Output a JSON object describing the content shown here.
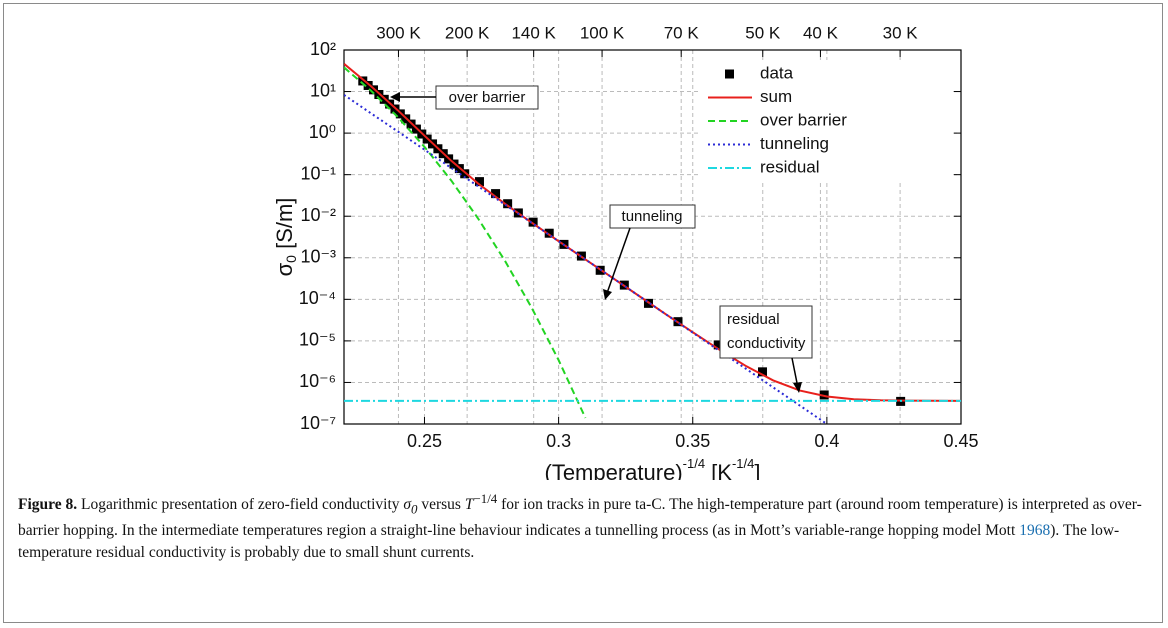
{
  "chart_data": {
    "type": "line",
    "xlim": [
      0.22,
      0.45
    ],
    "ylim": [
      1e-07,
      100
    ],
    "log_y": true,
    "grid": true,
    "legend": "upper right",
    "xticks": [
      0.25,
      0.3,
      0.35,
      0.4,
      0.45
    ],
    "yticks": [
      {
        "value": 100,
        "label": "10²"
      },
      {
        "value": 10,
        "label": "10¹"
      },
      {
        "value": 1,
        "label": "10⁰"
      },
      {
        "value": 0.1,
        "label": "10⁻¹"
      },
      {
        "value": 0.01,
        "label": "10⁻²"
      },
      {
        "value": 0.001,
        "label": "10⁻³"
      },
      {
        "value": 0.0001,
        "label": "10⁻⁴"
      },
      {
        "value": 1e-05,
        "label": "10⁻⁵"
      },
      {
        "value": 1e-06,
        "label": "10⁻⁶"
      },
      {
        "value": 1e-07,
        "label": "10⁻⁷"
      }
    ],
    "x2ticks": [
      {
        "value": 0.2403,
        "label": "300 K"
      },
      {
        "value": 0.2659,
        "label": "200 K"
      },
      {
        "value": 0.2907,
        "label": "140 K"
      },
      {
        "value": 0.3162,
        "label": "100 K"
      },
      {
        "value": 0.3457,
        "label": "70 K"
      },
      {
        "value": 0.3761,
        "label": "50 K"
      },
      {
        "value": 0.3976,
        "label": "40 K"
      },
      {
        "value": 0.4273,
        "label": "30 K"
      }
    ],
    "xlabel": [
      "(Temperature)",
      "-1/4",
      " [K",
      "-1/4",
      "]"
    ],
    "ylabel": [
      "σ",
      "0",
      " [S/m]"
    ],
    "series": [
      {
        "name": "data",
        "color": "#000000",
        "marker": "square",
        "x": [
          0.227,
          0.229,
          0.231,
          0.233,
          0.235,
          0.237,
          0.239,
          0.241,
          0.243,
          0.245,
          0.247,
          0.249,
          0.251,
          0.253,
          0.255,
          0.257,
          0.259,
          0.261,
          0.263,
          0.265,
          0.2705,
          0.2765,
          0.281,
          0.285,
          0.2905,
          0.2965,
          0.302,
          0.3085,
          0.3155,
          0.3245,
          0.3335,
          0.3445,
          0.3595,
          0.376,
          0.399,
          0.4275
        ],
        "values": [
          18,
          14,
          11,
          8.5,
          6.5,
          5,
          3.8,
          2.9,
          2.2,
          1.65,
          1.25,
          0.95,
          0.72,
          0.55,
          0.42,
          0.32,
          0.24,
          0.18,
          0.14,
          0.105,
          0.068,
          0.035,
          0.02,
          0.012,
          0.0072,
          0.0039,
          0.0021,
          0.0011,
          0.0005,
          0.00022,
          8e-05,
          2.9e-05,
          8e-06,
          1.8e-06,
          5e-07,
          3.5e-07
        ]
      },
      {
        "name": "sum",
        "color": "#e8201c",
        "line_style": "solid",
        "x": [
          0.22,
          0.23,
          0.24,
          0.25,
          0.26,
          0.27,
          0.28,
          0.29,
          0.3,
          0.31,
          0.32,
          0.33,
          0.34,
          0.35,
          0.36,
          0.37,
          0.38,
          0.39,
          0.4,
          0.41,
          0.42,
          0.43,
          0.44,
          0.45
        ],
        "values": [
          46.5,
          13.6,
          3.55,
          0.865,
          0.216,
          0.0613,
          0.0199,
          0.00698,
          0.00251,
          0.000912,
          0.000331,
          0.00012,
          4.37e-05,
          1.62e-05,
          6.11e-06,
          2.45e-06,
          1.12e-06,
          6.35e-07,
          4.6e-07,
          3.96e-07,
          3.73e-07,
          3.65e-07,
          3.62e-07,
          3.6e-07
        ]
      },
      {
        "name": "over barrier",
        "color": "#22d422",
        "line_style": "dashed",
        "x": [
          0.22,
          0.23,
          0.24,
          0.25,
          0.26,
          0.27,
          0.28,
          0.29,
          0.3,
          0.31
        ],
        "values": [
          38.2,
          10.6,
          2.45,
          0.467,
          0.0719,
          0.00883,
          0.000843,
          6.2e-05,
          3.44e-06,
          1.4e-07
        ]
      },
      {
        "name": "tunneling",
        "color": "#2b2bd6",
        "line_style": "dotted",
        "x": [
          0.22,
          0.23,
          0.24,
          0.25,
          0.26,
          0.27,
          0.28,
          0.29,
          0.3,
          0.31,
          0.32,
          0.33,
          0.34,
          0.35,
          0.36,
          0.37,
          0.38,
          0.39,
          0.4
        ],
        "values": [
          8.32,
          3.02,
          1.1,
          0.398,
          0.1445,
          0.0525,
          0.01905,
          0.00692,
          0.00251,
          0.000912,
          0.000331,
          0.00012,
          4.37e-05,
          1.58e-05,
          5.75e-06,
          2.09e-06,
          7.59e-07,
          2.75e-07,
          1e-07
        ]
      },
      {
        "name": "residual",
        "color": "#1ed8e0",
        "line_style": "dashdot",
        "x": [
          0.22,
          0.45
        ],
        "values": [
          3.6e-07,
          3.6e-07
        ]
      }
    ],
    "annotations": [
      {
        "text": [
          "over barrier"
        ]
      },
      {
        "text": [
          "tunneling"
        ]
      },
      {
        "text": [
          "residual",
          "conductivity"
        ]
      }
    ]
  },
  "caption": {
    "label": "Figure 8.",
    "text": [
      "Logarithmic presentation of zero-field conductivity ",
      "σ",
      "0",
      " versus ",
      "T",
      "−1/4",
      " for ion tracks in pure ta-C. The high-temperature part (around room temperature) is interpreted as over-barrier hopping. In the intermediate temperatures region a straight-line behaviour indicates a tunnelling process (as in Mott’s variable-range hopping model Mott ",
      "1968",
      "). The low-temperature residual conductivity is probably due to small shunt currents."
    ]
  }
}
